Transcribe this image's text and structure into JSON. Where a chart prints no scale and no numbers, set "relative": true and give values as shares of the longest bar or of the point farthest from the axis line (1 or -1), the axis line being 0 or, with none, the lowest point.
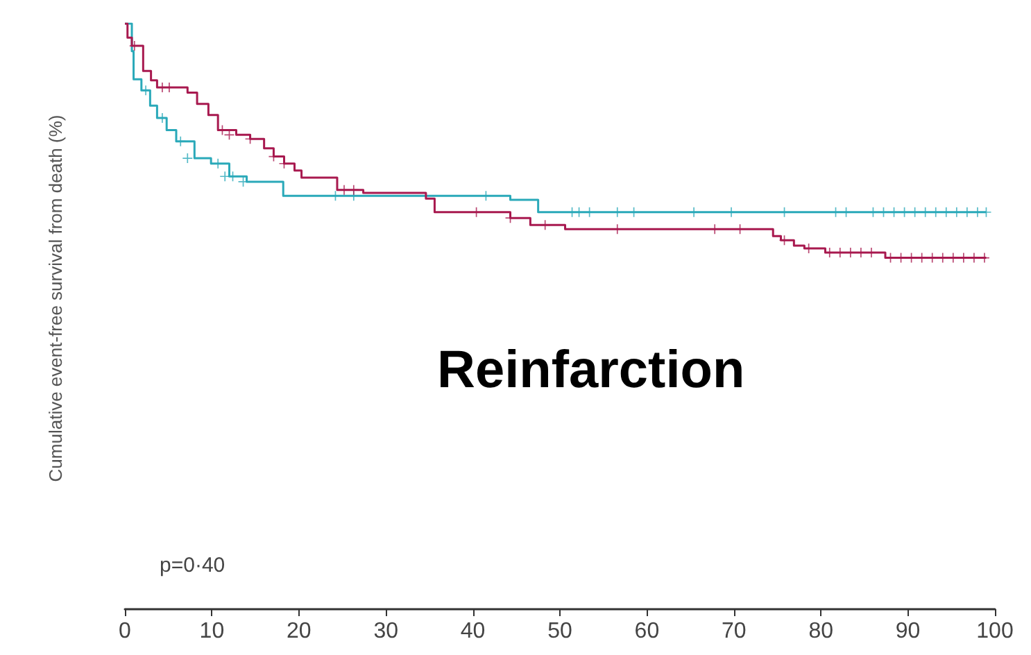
{
  "chart_data": {
    "type": "step",
    "relative": true,
    "ylabel": "Cumulative event-free survival from death (%)",
    "annotations": [
      "Reinfarction",
      "p=0·40"
    ],
    "xlim": [
      0,
      100
    ],
    "xticks": [
      0,
      10,
      20,
      30,
      40,
      50,
      60,
      70,
      80,
      90,
      100
    ],
    "grid": false,
    "marker": "none",
    "line_style": "solid",
    "series": [
      {
        "color": "#2aa9b9",
        "x": [
          0,
          0.8,
          1,
          1.9,
          2.9,
          3.7,
          4.8,
          5.9,
          8,
          9.9,
          12,
          14,
          18.2,
          44.3,
          47.5,
          99
        ],
        "values": [
          1,
          0.953,
          0.905,
          0.886,
          0.86,
          0.839,
          0.818,
          0.799,
          0.77,
          0.761,
          0.739,
          0.73,
          0.706,
          0.699,
          0.678,
          0.678
        ]
      },
      {
        "color": "#a8194f",
        "x": [
          0,
          0.3,
          0.8,
          2.1,
          3,
          3.7,
          7.2,
          8.3,
          9.6,
          10.7,
          12.8,
          14.4,
          16,
          17.1,
          18.3,
          19.5,
          20.3,
          24.4,
          27.4,
          34.6,
          35.6,
          44.3,
          46.6,
          50.6,
          74.5,
          75.4,
          76.9,
          78.1,
          80.5,
          87.4,
          99
        ],
        "values": [
          1,
          0.976,
          0.962,
          0.919,
          0.903,
          0.891,
          0.882,
          0.863,
          0.844,
          0.818,
          0.81,
          0.803,
          0.787,
          0.773,
          0.761,
          0.749,
          0.737,
          0.716,
          0.711,
          0.701,
          0.678,
          0.668,
          0.656,
          0.649,
          0.637,
          0.63,
          0.621,
          0.616,
          0.609,
          0.6,
          0.6
        ]
      },
      {
        "type": "scatter",
        "marker": "cross",
        "color": "#2aa9b9",
        "x": [
          2.4,
          4.3,
          6.4,
          7.2,
          10.7,
          11.5,
          12.4,
          13.6,
          24.2,
          26.3,
          41.5,
          51.4,
          52.2,
          53.4,
          56.6,
          58.5,
          65.4,
          69.7,
          75.8,
          81.7,
          82.9,
          86,
          87.2,
          88.4,
          89.6,
          90.8,
          92,
          93.2,
          94.4,
          95.6,
          96.8,
          98,
          99
        ],
        "values": [
          0.886,
          0.839,
          0.799,
          0.77,
          0.761,
          0.739,
          0.739,
          0.73,
          0.706,
          0.706,
          0.706,
          0.678,
          0.678,
          0.678,
          0.678,
          0.678,
          0.678,
          0.678,
          0.678,
          0.678,
          0.678,
          0.678,
          0.678,
          0.678,
          0.678,
          0.678,
          0.678,
          0.678,
          0.678,
          0.678,
          0.678,
          0.678,
          0.678
        ]
      },
      {
        "type": "scatter",
        "marker": "cross",
        "color": "#a8194f",
        "x": [
          1.1,
          4.3,
          5.1,
          11.2,
          12,
          14.4,
          17.1,
          18.3,
          25.2,
          26.3,
          40.4,
          44.3,
          48.3,
          56.6,
          67.8,
          70.7,
          75.8,
          78.6,
          81,
          82.2,
          83.4,
          84.6,
          85.8,
          88,
          89.2,
          90.4,
          91.6,
          92.8,
          94,
          95.2,
          96.4,
          97.6,
          98.8
        ],
        "values": [
          0.962,
          0.891,
          0.891,
          0.818,
          0.81,
          0.803,
          0.773,
          0.761,
          0.716,
          0.716,
          0.678,
          0.668,
          0.656,
          0.649,
          0.649,
          0.649,
          0.63,
          0.616,
          0.609,
          0.609,
          0.609,
          0.609,
          0.609,
          0.6,
          0.6,
          0.6,
          0.6,
          0.6,
          0.6,
          0.6,
          0.6,
          0.6,
          0.6
        ]
      }
    ]
  }
}
